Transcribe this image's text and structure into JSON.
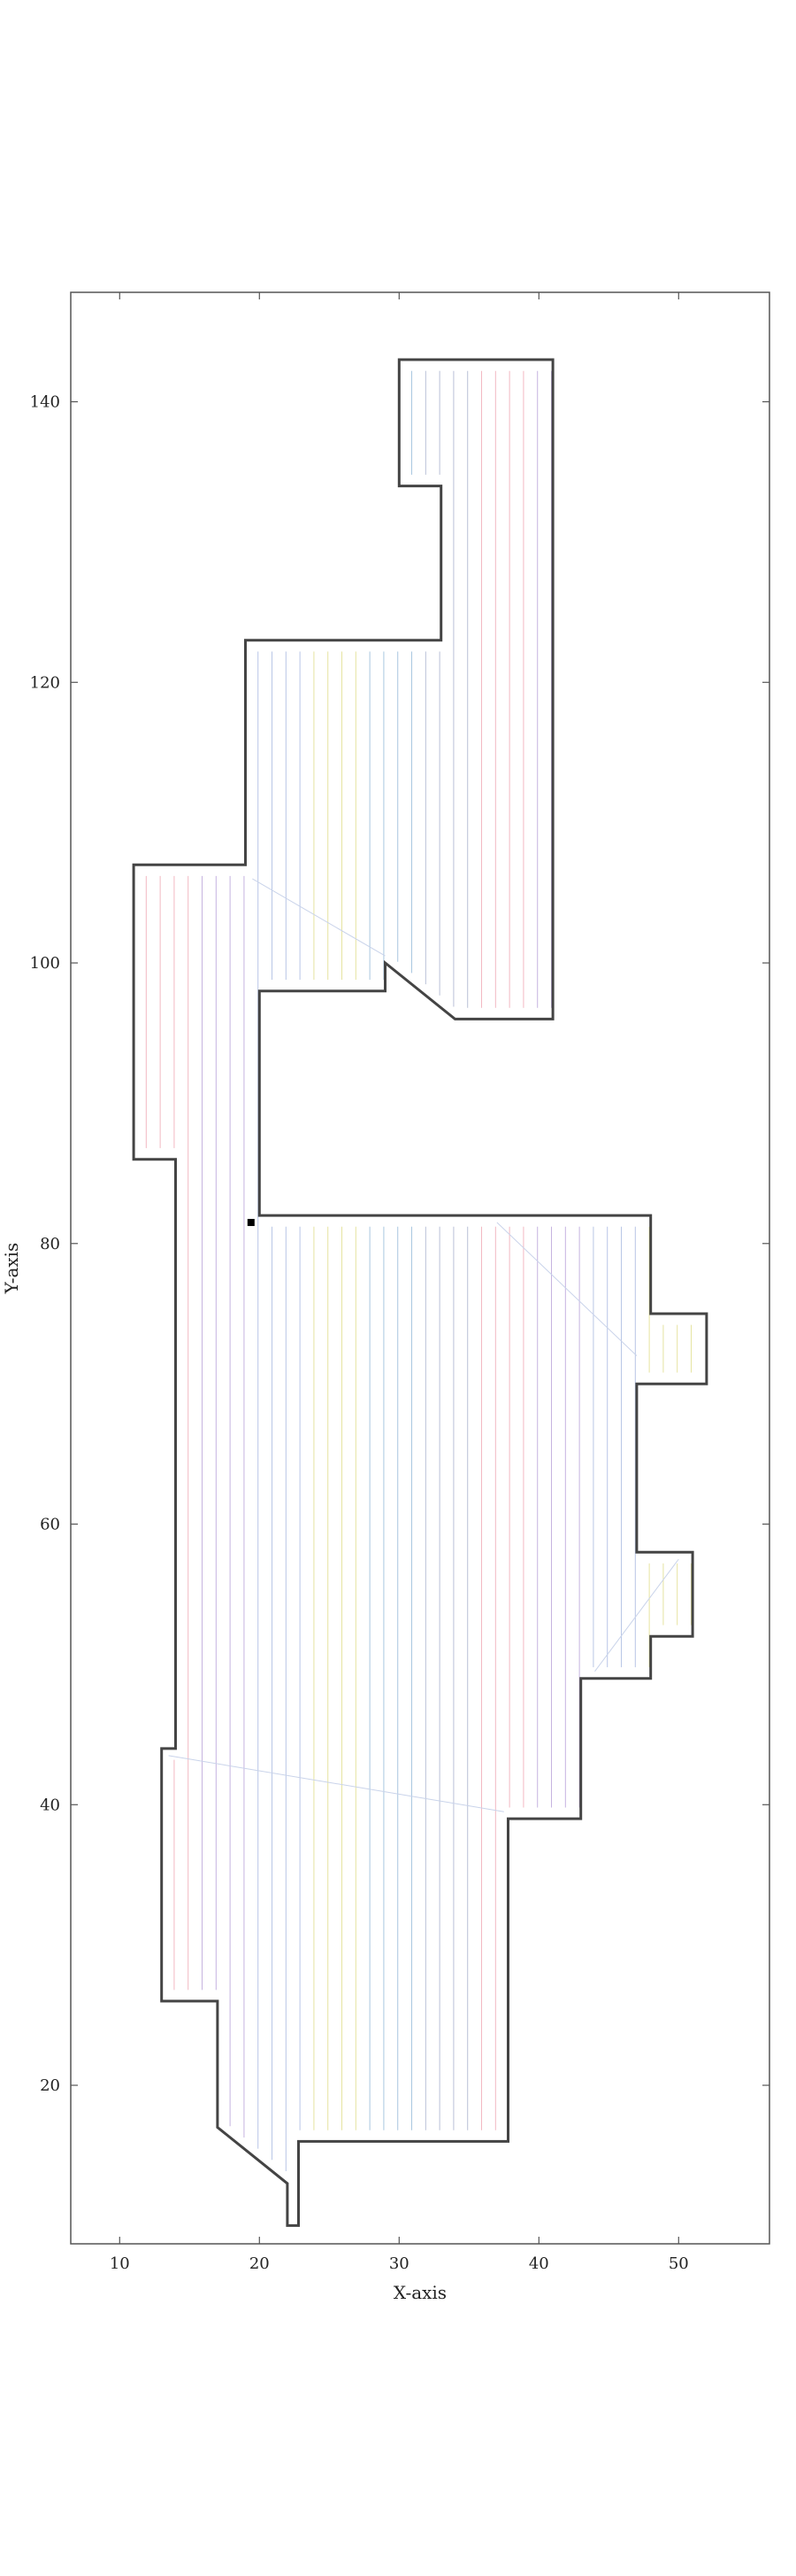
{
  "chart_data": {
    "type": "line",
    "title": "",
    "xlabel": "X-axis",
    "ylabel": "Y-axis",
    "xlim": [
      6.5,
      56.5
    ],
    "ylim": [
      8.7,
      147.8
    ],
    "xticks": [
      10,
      20,
      30,
      40,
      50
    ],
    "yticks": [
      20,
      40,
      60,
      80,
      100,
      120,
      140
    ],
    "grid": false,
    "outer_boundary": [
      [
        22.0,
        10.0
      ],
      [
        22.8,
        10.0
      ],
      [
        22.8,
        16.0
      ],
      [
        37.8,
        16.0
      ],
      [
        37.8,
        39.0
      ],
      [
        43.0,
        39.0
      ],
      [
        43.0,
        49.0
      ],
      [
        48.0,
        49.0
      ],
      [
        48.0,
        52.0
      ],
      [
        51.0,
        52.0
      ],
      [
        51.0,
        58.0
      ],
      [
        47.0,
        58.0
      ],
      [
        47.0,
        70.0
      ],
      [
        52.0,
        70.0
      ],
      [
        52.0,
        75.0
      ],
      [
        48.0,
        75.0
      ],
      [
        48.0,
        82.0
      ],
      [
        20.0,
        82.0
      ],
      [
        20.0,
        98.0
      ],
      [
        29.0,
        98.0
      ],
      [
        29.0,
        100.0
      ],
      [
        34.0,
        96.0
      ],
      [
        41.0,
        96.0
      ],
      [
        41.0,
        143.0
      ],
      [
        30.0,
        143.0
      ],
      [
        30.0,
        134.0
      ],
      [
        33.0,
        134.0
      ],
      [
        33.0,
        123.0
      ],
      [
        19.0,
        123.0
      ],
      [
        19.0,
        107.0
      ],
      [
        11.0,
        107.0
      ],
      [
        11.0,
        86.0
      ],
      [
        14.0,
        86.0
      ],
      [
        14.0,
        44.0
      ],
      [
        13.0,
        44.0
      ],
      [
        13.0,
        26.0
      ],
      [
        17.0,
        26.0
      ],
      [
        17.0,
        17.0
      ],
      [
        22.0,
        13.0
      ],
      [
        22.0,
        10.0
      ]
    ],
    "hatch": {
      "orientation": "vertical",
      "spacing": 1.0,
      "colors": [
        "#f2b8c2",
        "#c5b3e0",
        "#b8c6e6",
        "#e6e3a0",
        "#a9c7e0",
        "#b9c0d6"
      ]
    },
    "start_marker": [
      19.4,
      81.5
    ]
  }
}
